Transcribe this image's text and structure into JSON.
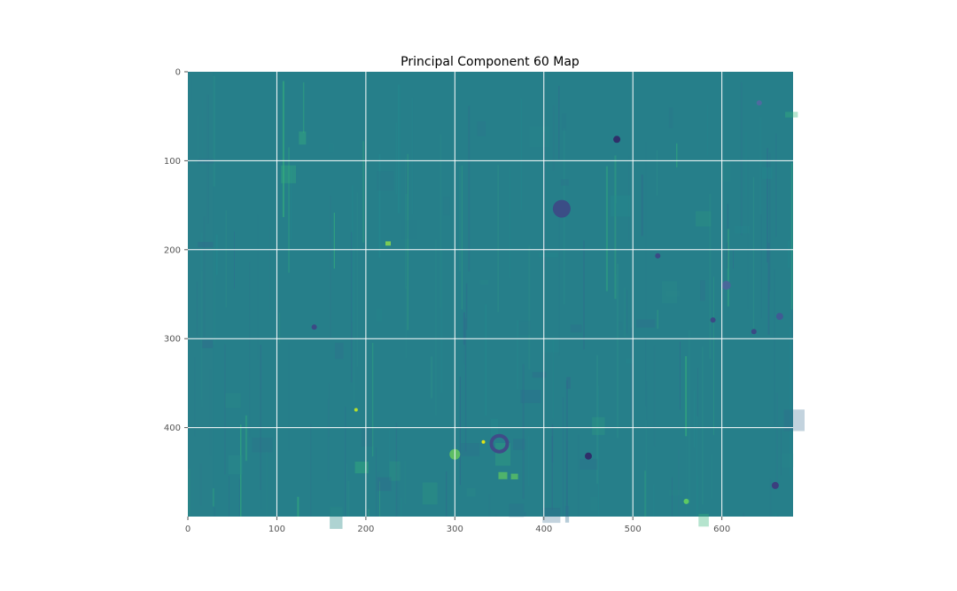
{
  "chart_data": {
    "type": "heatmap",
    "title": "Principal Component 60 Map",
    "xlabel": "",
    "ylabel": "",
    "xlim": [
      0,
      680
    ],
    "ylim": [
      500,
      0
    ],
    "x_ticks": [
      0,
      100,
      200,
      300,
      400,
      500,
      600
    ],
    "y_ticks": [
      0,
      100,
      200,
      300,
      400
    ],
    "grid": true,
    "colormap": "viridis",
    "base_color": "#267f8a",
    "features": [
      {
        "x": 420,
        "y": 154,
        "r": 10,
        "color": "#3b4d86",
        "shape": "circle"
      },
      {
        "x": 350,
        "y": 418,
        "r": 9,
        "color": "#3f4c88",
        "shape": "ring"
      },
      {
        "x": 300,
        "y": 430,
        "r": 6,
        "color": "#5cbd64",
        "shape": "circle"
      },
      {
        "x": 332,
        "y": 416,
        "r": 2,
        "color": "#dfe318",
        "shape": "circle"
      },
      {
        "x": 189,
        "y": 380,
        "r": 2,
        "color": "#b7de2c",
        "shape": "circle"
      },
      {
        "x": 482,
        "y": 76,
        "r": 4,
        "color": "#2f2f6a",
        "shape": "circle"
      },
      {
        "x": 450,
        "y": 432,
        "r": 4,
        "color": "#2f2f6a",
        "shape": "circle"
      },
      {
        "x": 660,
        "y": 465,
        "r": 4,
        "color": "#3b3f7e",
        "shape": "circle"
      },
      {
        "x": 354,
        "y": 454,
        "r": 5,
        "color": "#4fb36b",
        "shape": "rect"
      },
      {
        "x": 367,
        "y": 455,
        "r": 4,
        "color": "#4fb36b",
        "shape": "rect"
      },
      {
        "x": 225,
        "y": 193,
        "r": 3,
        "color": "#7ccb56",
        "shape": "rect"
      },
      {
        "x": 560,
        "y": 483,
        "r": 3,
        "color": "#5ec962",
        "shape": "circle"
      },
      {
        "x": 142,
        "y": 287,
        "r": 3,
        "color": "#3b4a85",
        "shape": "circle"
      },
      {
        "x": 528,
        "y": 207,
        "r": 3,
        "color": "#3b4a85",
        "shape": "circle"
      },
      {
        "x": 636,
        "y": 292,
        "r": 3,
        "color": "#3b4a85",
        "shape": "circle"
      },
      {
        "x": 665,
        "y": 275,
        "r": 4,
        "color": "#405b94",
        "shape": "circle"
      },
      {
        "x": 590,
        "y": 279,
        "r": 3,
        "color": "#3b4a85",
        "shape": "circle"
      },
      {
        "x": 642,
        "y": 35,
        "r": 3,
        "color": "#4f6aa0",
        "shape": "circle"
      },
      {
        "x": 605,
        "y": 240,
        "r": 5,
        "color": "#48679a",
        "shape": "circle"
      }
    ]
  }
}
